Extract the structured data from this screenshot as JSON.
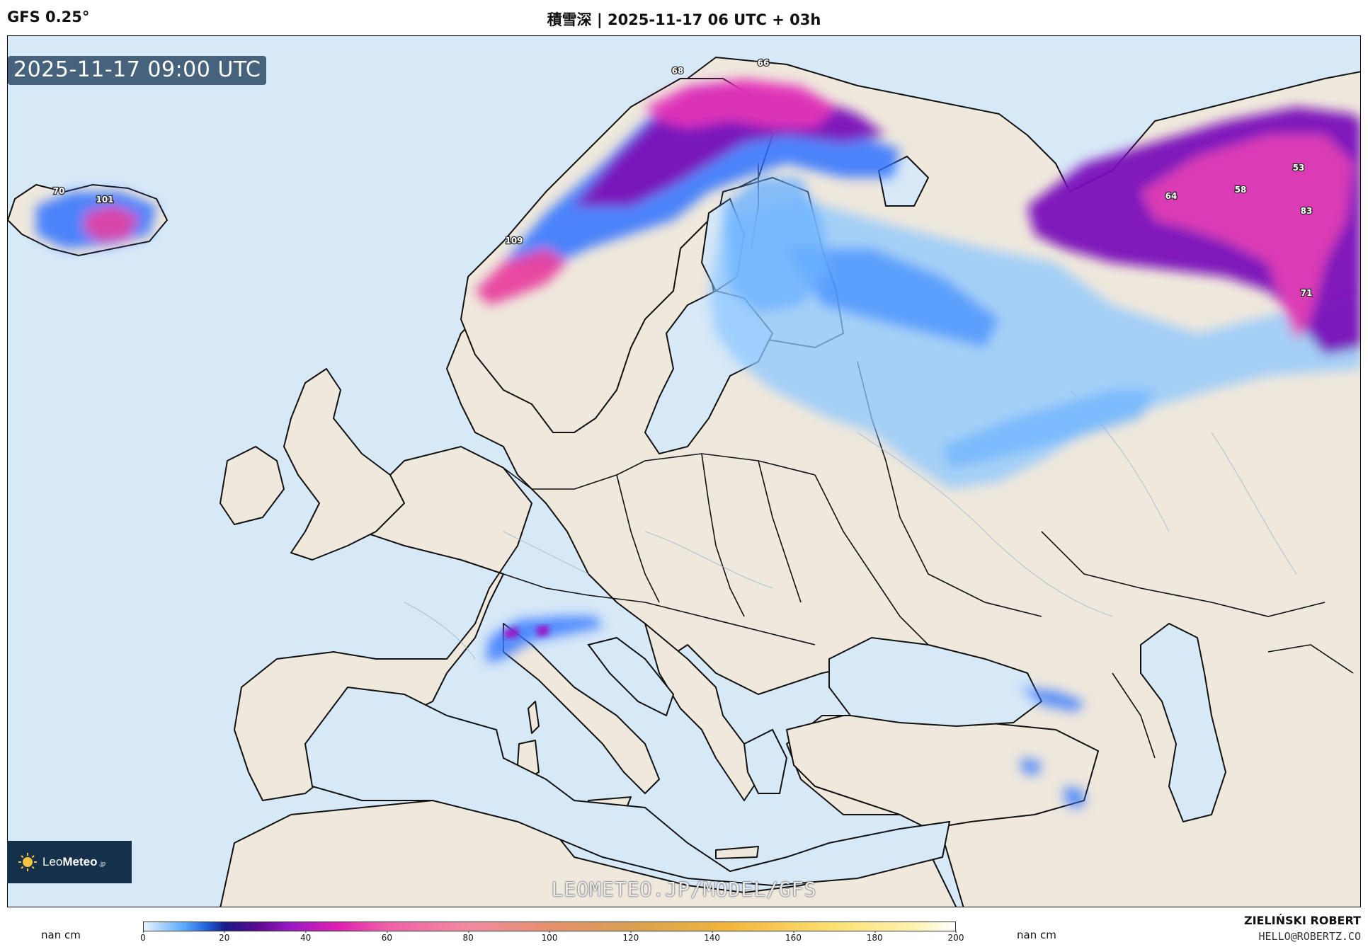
{
  "header": {
    "model": "GFS 0.25°",
    "title": "積雪深 | 2025-11-17 06 UTC + 03h"
  },
  "map": {
    "valid_time": "2025-11-17 09:00 UTC",
    "watermark": "LEOMETEO.JP/MODEL/GFS",
    "ocean_color": "#d7e8f7",
    "land_color": "#efe8dd",
    "labels": [
      {
        "text": "70"
      },
      {
        "text": "101"
      },
      {
        "text": "68"
      },
      {
        "text": "66"
      },
      {
        "text": "109"
      },
      {
        "text": "53"
      },
      {
        "text": "58"
      },
      {
        "text": "64"
      },
      {
        "text": "83"
      },
      {
        "text": "71"
      }
    ]
  },
  "logo": {
    "name_light": "Leo",
    "name_bold": "Meteo",
    "suffix": ".jp",
    "icon": "sun-icon"
  },
  "footer": {
    "nan_left": "nan cm",
    "nan_right": "nan cm",
    "author": "ZIELIŃSKI ROBERT",
    "email": "HELLO@ROBERTZ.CO"
  },
  "colorbar": {
    "ticks": [
      "0",
      "20",
      "40",
      "60",
      "80",
      "100",
      "120",
      "140",
      "160",
      "180",
      "200"
    ],
    "range": [
      0,
      200
    ]
  }
}
